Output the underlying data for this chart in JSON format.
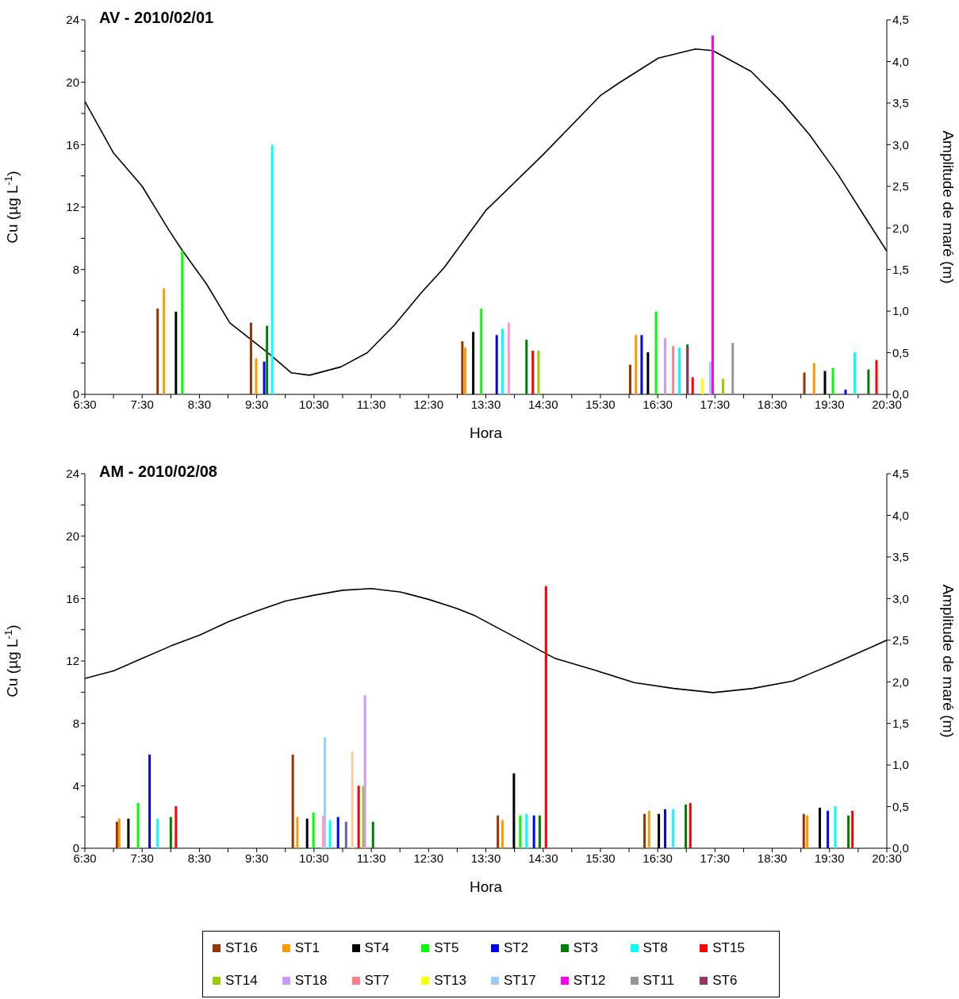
{
  "chart_data": [
    {
      "type": "bar",
      "title": "AV - 2010/02/01",
      "xlabel": "Hora",
      "ylabel": "Cu (µg L$^{-1}$)",
      "y2label": "Amplitude de maré (m)",
      "legend": "bottom",
      "xlim": [
        6.5,
        20.5
      ],
      "xticks": [
        {
          "value": 6.5,
          "label": "6:30"
        },
        {
          "value": 7,
          "label": null
        },
        {
          "value": 7.5,
          "label": "7:30"
        },
        {
          "value": 8,
          "label": null
        },
        {
          "value": 8.5,
          "label": "8:30"
        },
        {
          "value": 9,
          "label": null
        },
        {
          "value": 9.5,
          "label": "9:30"
        },
        {
          "value": 10,
          "label": null
        },
        {
          "value": 10.5,
          "label": "10:30"
        },
        {
          "value": 11,
          "label": null
        },
        {
          "value": 11.5,
          "label": "11:30"
        },
        {
          "value": 12,
          "label": null
        },
        {
          "value": 12.5,
          "label": "12:30"
        },
        {
          "value": 13,
          "label": null
        },
        {
          "value": 13.5,
          "label": "13:30"
        },
        {
          "value": 14,
          "label": null
        },
        {
          "value": 14.5,
          "label": "14:30"
        },
        {
          "value": 15,
          "label": null
        },
        {
          "value": 15.5,
          "label": "15:30"
        },
        {
          "value": 16,
          "label": null
        },
        {
          "value": 16.5,
          "label": "16:30"
        },
        {
          "value": 17,
          "label": null
        },
        {
          "value": 17.5,
          "label": "17:30"
        },
        {
          "value": 18,
          "label": null
        },
        {
          "value": 18.5,
          "label": "18:30"
        },
        {
          "value": 19,
          "label": null
        },
        {
          "value": 19.5,
          "label": "19:30"
        },
        {
          "value": 20,
          "label": null
        },
        {
          "value": 20.5,
          "label": "20:30"
        }
      ],
      "ylim": [
        0,
        24
      ],
      "yticks": [
        0,
        {
          "value": 2,
          "label": null
        },
        4,
        {
          "value": 6,
          "label": null
        },
        8,
        {
          "value": 10,
          "label": null
        },
        12,
        {
          "value": 14,
          "label": null
        },
        16,
        {
          "value": 18,
          "label": null
        },
        20,
        {
          "value": 22,
          "label": null
        },
        24
      ],
      "y2lim": [
        0,
        4.5
      ],
      "y2ticks": [
        {
          "value": 0,
          "label": "0,0"
        },
        {
          "value": 0.5,
          "label": "0,5"
        },
        {
          "value": 1,
          "label": "1,0"
        },
        {
          "value": 1.5,
          "label": "1,5"
        },
        {
          "value": 2,
          "label": "2,0"
        },
        {
          "value": 2.5,
          "label": "2,5"
        },
        {
          "value": 3,
          "label": "3,0"
        },
        {
          "value": 3.5,
          "label": "3,5"
        },
        {
          "value": 4,
          "label": "4,0"
        },
        {
          "value": 4.5,
          "label": "4,5"
        }
      ],
      "series": [
        {
          "name": "ST16",
          "color": "#993300",
          "x": [
            7.77,
            9.4,
            13.09,
            16.02,
            19.06
          ],
          "values": [
            5.5,
            4.6,
            3.4,
            1.9,
            1.4
          ]
        },
        {
          "name": "ST1",
          "color": "#ff9900",
          "x": [
            7.88,
            9.49,
            13.14,
            16.12,
            19.23
          ],
          "values": [
            6.8,
            2.3,
            3.0,
            3.8,
            2.0
          ]
        },
        {
          "name": "ST4",
          "color": "#000000",
          "x": [
            8.09,
            13.28,
            16.33,
            19.42
          ],
          "values": [
            5.3,
            4.0,
            2.7,
            1.5
          ]
        },
        {
          "name": "ST5",
          "color": "#00ff00",
          "x": [
            8.2,
            13.42,
            16.47,
            19.56
          ],
          "values": [
            9.2,
            5.5,
            5.3,
            1.7
          ]
        },
        {
          "name": "ST2",
          "color": "#0000ff",
          "x": [
            9.63,
            13.69,
            16.22,
            19.78
          ],
          "values": [
            2.1,
            3.8,
            3.8,
            0.3
          ]
        },
        {
          "name": "ST3",
          "color": "#008000",
          "x": [
            9.68,
            14.21,
            17.02,
            20.18
          ],
          "values": [
            4.4,
            3.5,
            3.2,
            1.6
          ]
        },
        {
          "name": "ST8",
          "color": "#00ffff",
          "x": [
            9.77,
            13.79,
            16.88,
            19.94
          ],
          "values": [
            16.0,
            4.2,
            3.0,
            2.7
          ]
        },
        {
          "name": "ST15",
          "color": "#ff0000",
          "x": [
            14.32,
            17.11,
            20.32
          ],
          "values": [
            2.8,
            1.1,
            2.2
          ]
        },
        {
          "name": "ST14",
          "color": "#99cc00",
          "x": [
            14.42,
            17.64
          ],
          "values": [
            2.8,
            1.0
          ]
        },
        {
          "name": "ST18",
          "color": "#cc99ff",
          "x": [
            16.63
          ],
          "values": [
            3.6
          ]
        },
        {
          "name": "ST7",
          "color": "#ff8080",
          "x": [
            16.77
          ],
          "values": [
            3.1
          ]
        },
        {
          "name": "ST13",
          "color": "#ffff00",
          "x": [
            17.28
          ],
          "values": [
            1.0
          ]
        },
        {
          "name": "ST17",
          "color": "#99ccff",
          "x": [
            17.42
          ],
          "values": [
            2.1
          ]
        },
        {
          "name": "ST12",
          "color": "#ff00ff",
          "x": [
            17.46
          ],
          "values": [
            23.0
          ]
        },
        {
          "name": "ST11",
          "color": "#969696",
          "x": [
            17.81
          ],
          "values": [
            3.3
          ]
        },
        {
          "name": "ST6",
          "color": "#993366",
          "x": [
            17.02
          ],
          "values": [
            3.0
          ]
        },
        {
          "color": "#ff99cc",
          "x": [
            13.9
          ],
          "values": [
            4.6
          ]
        },
        {
          "type": "line",
          "axis": "y2",
          "color": "#000000",
          "x": [
            6.5,
            7.0,
            7.5,
            7.97,
            8.2,
            8.62,
            9.03,
            9.73,
            10.1,
            10.42,
            10.97,
            11.43,
            11.9,
            12.36,
            12.77,
            13.5,
            14.5,
            15.5,
            15.82,
            16.51,
            17.16,
            17.46,
            18.13,
            18.68,
            19.15,
            19.65,
            20.11,
            20.5
          ],
          "values": [
            3.52,
            2.9,
            2.5,
            1.97,
            1.73,
            1.33,
            0.86,
            0.48,
            0.26,
            0.23,
            0.33,
            0.5,
            0.83,
            1.21,
            1.52,
            2.21,
            2.88,
            3.59,
            3.74,
            4.04,
            4.15,
            4.13,
            3.88,
            3.5,
            3.12,
            2.64,
            2.14,
            1.72
          ]
        }
      ]
    },
    {
      "type": "bar",
      "title": "AM - 2010/02/08",
      "xlabel": "Hora",
      "ylabel": "Cu (µg L$^{-1}$)",
      "y2label": "Amplitude de maré (m)",
      "xlim": [
        6.5,
        20.5
      ],
      "xticks": [
        {
          "value": 6.5,
          "label": "6:30"
        },
        {
          "value": 7,
          "label": null
        },
        {
          "value": 7.5,
          "label": "7:30"
        },
        {
          "value": 8,
          "label": null
        },
        {
          "value": 8.5,
          "label": "8:30"
        },
        {
          "value": 9,
          "label": null
        },
        {
          "value": 9.5,
          "label": "9:30"
        },
        {
          "value": 10,
          "label": null
        },
        {
          "value": 10.5,
          "label": "10:30"
        },
        {
          "value": 11,
          "label": null
        },
        {
          "value": 11.5,
          "label": "11:30"
        },
        {
          "value": 12,
          "label": null
        },
        {
          "value": 12.5,
          "label": "12:30"
        },
        {
          "value": 13,
          "label": null
        },
        {
          "value": 13.5,
          "label": "13:30"
        },
        {
          "value": 14,
          "label": null
        },
        {
          "value": 14.5,
          "label": "14:30"
        },
        {
          "value": 15,
          "label": null
        },
        {
          "value": 15.5,
          "label": "15:30"
        },
        {
          "value": 16,
          "label": null
        },
        {
          "value": 16.5,
          "label": "16:30"
        },
        {
          "value": 17,
          "label": null
        },
        {
          "value": 17.5,
          "label": "17:30"
        },
        {
          "value": 18,
          "label": null
        },
        {
          "value": 18.5,
          "label": "18:30"
        },
        {
          "value": 19,
          "label": null
        },
        {
          "value": 19.5,
          "label": "19:30"
        },
        {
          "value": 20,
          "label": null
        },
        {
          "value": 20.5,
          "label": "20:30"
        }
      ],
      "ylim": [
        0,
        24
      ],
      "yticks": [
        0,
        {
          "value": 2,
          "label": null
        },
        4,
        {
          "value": 6,
          "label": null
        },
        8,
        {
          "value": 10,
          "label": null
        },
        12,
        {
          "value": 14,
          "label": null
        },
        16,
        {
          "value": 18,
          "label": null
        },
        20,
        {
          "value": 22,
          "label": null
        },
        24
      ],
      "y2lim": [
        0,
        4.5
      ],
      "y2ticks": [
        {
          "value": 0,
          "label": "0,0"
        },
        {
          "value": 0.5,
          "label": "0,5"
        },
        {
          "value": 1,
          "label": "1,0"
        },
        {
          "value": 1.5,
          "label": "1,5"
        },
        {
          "value": 2,
          "label": "2,0"
        },
        {
          "value": 2.5,
          "label": "2,5"
        },
        {
          "value": 3,
          "label": "3,0"
        },
        {
          "value": 3.5,
          "label": "3,5"
        },
        {
          "value": 4,
          "label": "4,0"
        },
        {
          "value": 4.5,
          "label": "4,5"
        }
      ],
      "series": [
        {
          "color": "#993300",
          "x": [
            7.06,
            10.13,
            13.71,
            16.27,
            19.05
          ],
          "values": [
            1.7,
            6.0,
            2.1,
            2.2,
            2.2
          ]
        },
        {
          "color": "#ff9900",
          "x": [
            7.1,
            10.21,
            13.79,
            16.35,
            19.11
          ],
          "values": [
            1.9,
            2.0,
            1.8,
            2.4,
            2.1
          ]
        },
        {
          "color": "#000000",
          "x": [
            7.26,
            10.38,
            13.99,
            16.52,
            19.33
          ],
          "values": [
            1.9,
            1.9,
            4.8,
            2.2,
            2.6
          ]
        },
        {
          "color": "#00ff00",
          "x": [
            7.43,
            10.49,
            14.1
          ],
          "values": [
            2.9,
            2.3,
            2.1
          ]
        },
        {
          "color": "#0000ff",
          "x": [
            7.63,
            10.92,
            14.34,
            16.63,
            19.47
          ],
          "values": [
            6.0,
            2.0,
            2.1,
            2.5,
            2.4
          ]
        },
        {
          "color": "#008000",
          "x": [
            8.0,
            11.53,
            14.44,
            16.99,
            19.83
          ],
          "values": [
            2.0,
            1.7,
            2.1,
            2.8,
            2.1
          ]
        },
        {
          "color": "#00ffff",
          "x": [
            7.77,
            10.78,
            14.21,
            16.77,
            19.6
          ],
          "values": [
            1.9,
            1.8,
            2.2,
            2.5,
            2.7
          ]
        },
        {
          "color": "#ff0000",
          "x": [
            8.09,
            11.28,
            14.55,
            17.07,
            19.9
          ],
          "values": [
            2.7,
            4.0,
            16.8,
            2.9,
            2.4
          ]
        },
        {
          "color": "#99cc00",
          "x": [
            11.36
          ],
          "values": [
            4.0
          ]
        },
        {
          "color": "#cc99ff",
          "x": [
            11.39
          ],
          "values": [
            9.8
          ]
        },
        {
          "color": "#99ccff",
          "x": [
            10.69
          ],
          "values": [
            7.1
          ]
        },
        {
          "color": "#ff99cc",
          "x": [
            10.66
          ],
          "values": [
            2.1
          ]
        },
        {
          "color": "#666699",
          "x": [
            11.06
          ],
          "values": [
            1.7
          ]
        },
        {
          "color": "#ffcc99",
          "x": [
            11.17
          ],
          "values": [
            6.2
          ]
        },
        {
          "type": "line",
          "axis": "y2",
          "color": "#000000",
          "x": [
            6.5,
            7.0,
            7.5,
            8.0,
            8.5,
            9.0,
            9.5,
            10.0,
            10.5,
            11.0,
            11.5,
            12.0,
            12.5,
            13.0,
            13.32,
            14.71,
            15.4,
            16.09,
            16.78,
            17.47,
            18.16,
            18.86,
            19.55,
            20.24,
            20.5
          ],
          "values": [
            2.04,
            2.13,
            2.28,
            2.43,
            2.56,
            2.72,
            2.85,
            2.97,
            3.04,
            3.1,
            3.12,
            3.08,
            2.99,
            2.88,
            2.79,
            2.28,
            2.14,
            1.99,
            1.92,
            1.87,
            1.92,
            2.01,
            2.21,
            2.42,
            2.5
          ]
        }
      ]
    }
  ]
}
